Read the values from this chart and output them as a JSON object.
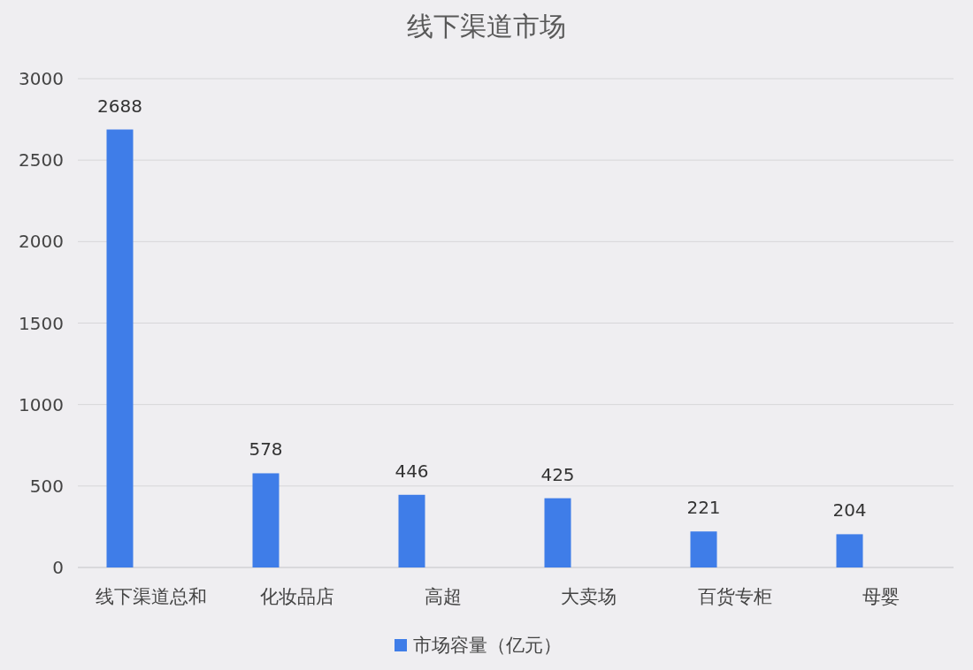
{
  "chart_data": {
    "type": "bar",
    "title": "线下渠道市场",
    "categories": [
      "线下渠道总和",
      "化妆品店",
      "高超",
      "大卖场",
      "百货专柜",
      "母婴"
    ],
    "series": [
      {
        "name": "市场容量（亿元）",
        "color": "#3f7de8",
        "values": [
          2688,
          578,
          446,
          425,
          221,
          204
        ]
      }
    ],
    "ylim": [
      0,
      3000
    ],
    "yticks": [
      0,
      500,
      1000,
      1500,
      2000,
      2500,
      3000
    ],
    "grid": "y",
    "legend": "bottom",
    "data_labels": true
  }
}
